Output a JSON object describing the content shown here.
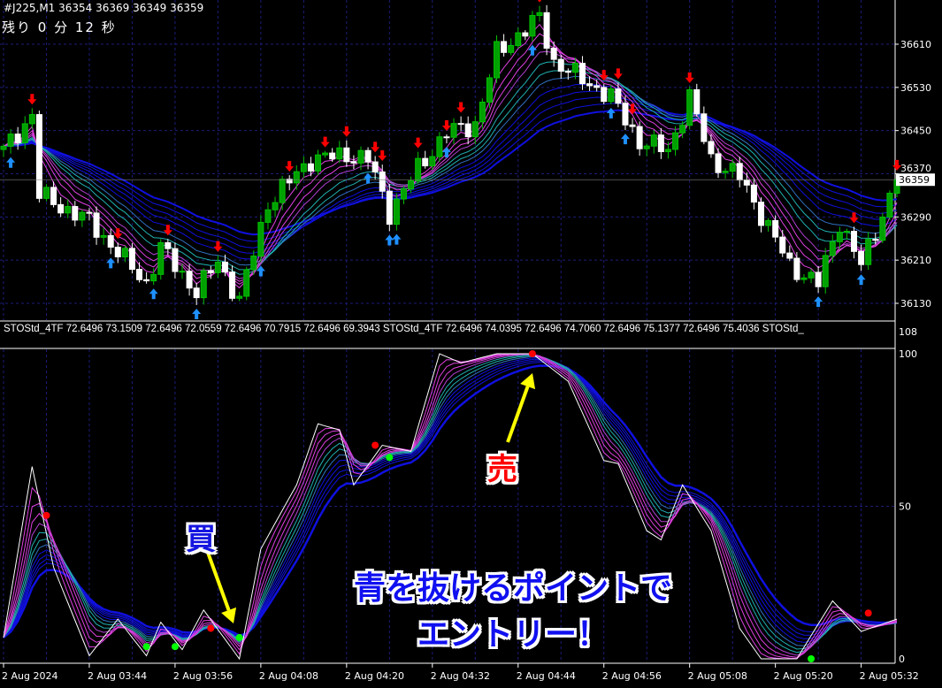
{
  "header": {
    "symbol_line": "#J225,M1  36354 36369 36349 36359",
    "timer": "残り 0 分 12 秒"
  },
  "indicator": {
    "label": "STOStd_4TF 72.6496 73.1509 72.6496 72.0559 72.6496 70.7915 72.6496 69.3943  STOStd_4TF 72.6496 74.0395 72.6496 74.7060 72.6496 75.1377 72.6496 75.4036  STOStd_"
  },
  "annotations": {
    "sell": "売",
    "buy": "買",
    "message_line1": "青を抜けるポイントで",
    "message_line2": "エントリー！"
  },
  "colors": {
    "background": "#000000",
    "grid": "#1c1c7a",
    "bull_candle": "#00c000",
    "bear_candle": "#ffffff",
    "short_ribbon": "#e040e0",
    "mid_ribbon": "#20b0b0",
    "long_ribbon": "#1010e0",
    "sell_signal": "#ff0000",
    "buy_signal": "#1e90ff",
    "buy_dot": "#00ff00",
    "arrow_annotation": "#ffff00"
  },
  "chart_data": [
    {
      "type": "candlestick",
      "symbol": "#J225",
      "timeframe": "M1",
      "ohlc_last": {
        "open": 36354,
        "high": 36369,
        "low": 36349,
        "close": 36359
      },
      "current_price": 36359,
      "ylim": [
        36100,
        36680
      ],
      "y_ticks": [
        36130,
        36210,
        36290,
        36370,
        36450,
        36530,
        36610
      ],
      "x_ticks": [
        "2 Aug 2024",
        "2 Aug 03:44",
        "2 Aug 03:56",
        "2 Aug 04:08",
        "2 Aug 04:20",
        "2 Aug 04:32",
        "2 Aug 04:44",
        "2 Aug 04:56",
        "2 Aug 05:08",
        "2 Aug 05:20",
        "2 Aug 05:32"
      ],
      "grid": true,
      "close_path": [
        [
          "03:32",
          36413
        ],
        [
          "03:36",
          36479
        ],
        [
          "03:37",
          36331
        ],
        [
          "03:44",
          36282
        ],
        [
          "03:52",
          36167
        ],
        [
          "03:54",
          36233
        ],
        [
          "03:59",
          36151
        ],
        [
          "04:02",
          36208
        ],
        [
          "04:05",
          36135
        ],
        [
          "04:09",
          36315
        ],
        [
          "04:15",
          36397
        ],
        [
          "04:20",
          36405
        ],
        [
          "04:23",
          36397
        ],
        [
          "04:26",
          36298
        ],
        [
          "04:30",
          36380
        ],
        [
          "04:34",
          36446
        ],
        [
          "04:38",
          36462
        ],
        [
          "04:41",
          36594
        ],
        [
          "04:47",
          36659
        ],
        [
          "04:49",
          36577
        ],
        [
          "04:52",
          36553
        ],
        [
          "04:57",
          36512
        ],
        [
          "05:01",
          36430
        ],
        [
          "05:05",
          36413
        ],
        [
          "05:08",
          36512
        ],
        [
          "05:11",
          36397
        ],
        [
          "05:15",
          36364
        ],
        [
          "05:20",
          36249
        ],
        [
          "05:22",
          36200
        ],
        [
          "05:26",
          36167
        ],
        [
          "05:29",
          36282
        ],
        [
          "05:32",
          36200
        ],
        [
          "05:37",
          36359
        ]
      ],
      "sell_arrows": [
        "03:36",
        "03:48",
        "03:55",
        "04:02",
        "04:12",
        "04:17",
        "04:20",
        "04:24",
        "04:25",
        "04:30",
        "04:34",
        "04:36",
        "04:47",
        "04:56",
        "04:58",
        "05:00",
        "05:08",
        "05:31",
        "05:37"
      ],
      "buy_arrows": [
        "03:33",
        "03:47",
        "03:53",
        "03:59",
        "04:08",
        "04:23",
        "04:26",
        "04:27",
        "04:34",
        "04:46",
        "04:57",
        "04:59",
        "05:26",
        "05:32"
      ]
    },
    {
      "type": "line",
      "name": "STOStd_4TF",
      "ylim": [
        0,
        108
      ],
      "y_ticks": [
        0,
        50,
        100,
        108
      ],
      "grid": true,
      "main_path": [
        [
          "03:32",
          7
        ],
        [
          "03:36",
          63
        ],
        [
          "03:39",
          30
        ],
        [
          "03:44",
          1
        ],
        [
          "03:48",
          13
        ],
        [
          "03:52",
          1
        ],
        [
          "03:54",
          12
        ],
        [
          "03:57",
          3
        ],
        [
          "04:00",
          16
        ],
        [
          "04:05",
          0
        ],
        [
          "04:08",
          36
        ],
        [
          "04:13",
          57
        ],
        [
          "04:16",
          77
        ],
        [
          "04:19",
          75
        ],
        [
          "04:21",
          57
        ],
        [
          "04:25",
          70
        ],
        [
          "04:29",
          68
        ],
        [
          "04:33",
          100
        ],
        [
          "04:36",
          97
        ],
        [
          "04:41",
          100
        ],
        [
          "04:46",
          100
        ],
        [
          "04:51",
          91
        ],
        [
          "04:56",
          65
        ],
        [
          "04:58",
          64
        ],
        [
          "05:02",
          42
        ],
        [
          "05:04",
          39
        ],
        [
          "05:07",
          57
        ],
        [
          "05:11",
          42
        ],
        [
          "05:15",
          10
        ],
        [
          "05:18",
          0
        ],
        [
          "05:23",
          0
        ],
        [
          "05:28",
          19
        ],
        [
          "05:32",
          9
        ],
        [
          "05:37",
          13
        ]
      ],
      "sell_dots": [
        [
          "03:38",
          47
        ],
        [
          "04:01",
          10
        ],
        [
          "04:24",
          70
        ],
        [
          "04:46",
          100
        ],
        [
          "05:33",
          15
        ]
      ],
      "buy_dots": [
        [
          "03:52",
          4
        ],
        [
          "03:56",
          4
        ],
        [
          "04:05",
          7
        ],
        [
          "04:26",
          66
        ],
        [
          "05:25",
          0
        ]
      ]
    }
  ]
}
